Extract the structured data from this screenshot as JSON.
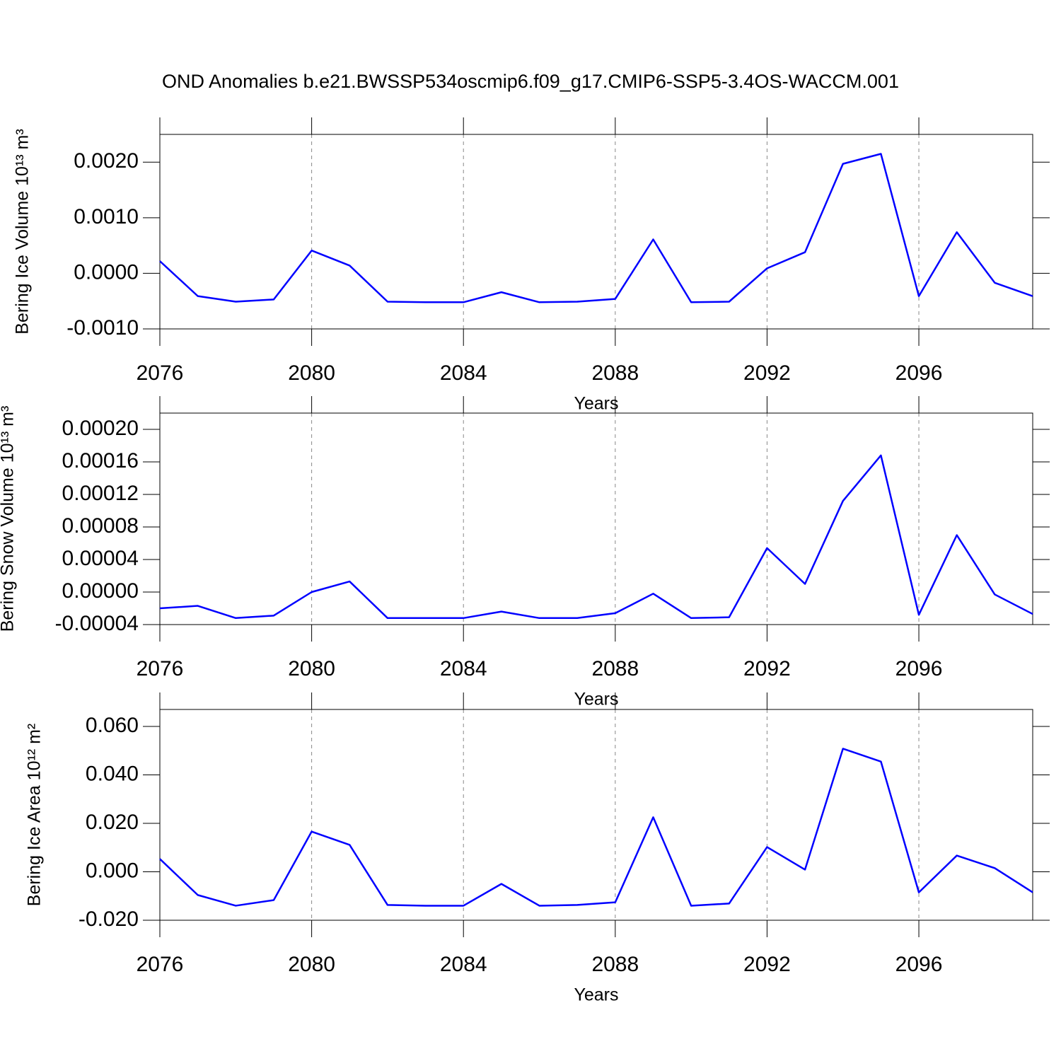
{
  "chart_data": [
    {
      "type": "line",
      "title": "OND Anomalies b.e21.BWSSP534oscmip6.f09_g17.CMIP6-SSP5-3.4OS-WACCM.001",
      "xlabel": "Years",
      "ylabel": "Bering Ice Volume 10¹³ m³",
      "x": [
        2076,
        2077,
        2078,
        2079,
        2080,
        2081,
        2082,
        2083,
        2084,
        2085,
        2086,
        2087,
        2088,
        2089,
        2090,
        2091,
        2092,
        2093,
        2094,
        2095,
        2096,
        2097,
        2098,
        2099
      ],
      "series": [
        {
          "color": "#0000ff",
          "values": [
            0.00022,
            -0.00041,
            -0.00051,
            -0.00047,
            0.00041,
            0.00014,
            -0.00051,
            -0.00052,
            -0.00052,
            -0.00034,
            -0.00052,
            -0.00051,
            -0.00046,
            0.00061,
            -0.00052,
            -0.00051,
            9e-05,
            0.00038,
            0.00197,
            0.00215,
            -0.00041,
            0.00074,
            -0.00017,
            -0.00041
          ]
        }
      ],
      "xlim": [
        2076,
        2099
      ],
      "xticks": [
        2076,
        2080,
        2084,
        2088,
        2092,
        2096
      ],
      "ylim": [
        -0.001,
        0.0025
      ],
      "yticks": [
        {
          "value": -0.001,
          "label": "-0.0010"
        },
        {
          "value": 0,
          "label": "0.0000"
        },
        {
          "value": 0.001,
          "label": "0.0010"
        },
        {
          "value": 0.002,
          "label": "0.0020"
        }
      ],
      "grid": "x"
    },
    {
      "type": "line",
      "xlabel": "Years",
      "ylabel": "Bering Snow Volume 10¹³ m³",
      "x": [
        2076,
        2077,
        2078,
        2079,
        2080,
        2081,
        2082,
        2083,
        2084,
        2085,
        2086,
        2087,
        2088,
        2089,
        2090,
        2091,
        2092,
        2093,
        2094,
        2095,
        2096,
        2097,
        2098,
        2099
      ],
      "series": [
        {
          "color": "#0000ff",
          "values": [
            -2e-05,
            -1.7e-05,
            -3.2e-05,
            -2.9e-05,
            0,
            1.3e-05,
            -3.2e-05,
            -3.2e-05,
            -3.2e-05,
            -2.4e-05,
            -3.2e-05,
            -3.2e-05,
            -2.6e-05,
            -2e-06,
            -3.2e-05,
            -3.1e-05,
            5.4e-05,
            1e-05,
            0.000112,
            0.000168,
            -2.8e-05,
            7e-05,
            -3e-06,
            -2.7e-05
          ]
        }
      ],
      "xlim": [
        2076,
        2099
      ],
      "xticks": [
        2076,
        2080,
        2084,
        2088,
        2092,
        2096
      ],
      "ylim": [
        -4e-05,
        0.00022
      ],
      "yticks": [
        {
          "value": -4e-05,
          "label": "-0.00004"
        },
        {
          "value": 0,
          "label": "0.00000"
        },
        {
          "value": 4e-05,
          "label": "0.00004"
        },
        {
          "value": 8e-05,
          "label": "0.00008"
        },
        {
          "value": 0.00012,
          "label": "0.00012"
        },
        {
          "value": 0.00016,
          "label": "0.00016"
        },
        {
          "value": 0.0002,
          "label": "0.00020"
        }
      ],
      "grid": "x"
    },
    {
      "type": "line",
      "xlabel": "Years",
      "ylabel": "Bering Ice Area 10¹² m²",
      "x": [
        2076,
        2077,
        2078,
        2079,
        2080,
        2081,
        2082,
        2083,
        2084,
        2085,
        2086,
        2087,
        2088,
        2089,
        2090,
        2091,
        2092,
        2093,
        2094,
        2095,
        2096,
        2097,
        2098,
        2099
      ],
      "series": [
        {
          "color": "#0000ff",
          "values": [
            0.0053,
            -0.0096,
            -0.014,
            -0.0117,
            0.0166,
            0.0111,
            -0.0137,
            -0.014,
            -0.014,
            -0.005,
            -0.014,
            -0.0137,
            -0.0126,
            0.0225,
            -0.014,
            -0.0131,
            0.0102,
            0.0009,
            0.0508,
            0.0455,
            -0.0085,
            0.0067,
            0.0015,
            -0.0085
          ]
        }
      ],
      "xlim": [
        2076,
        2099
      ],
      "xticks": [
        2076,
        2080,
        2084,
        2088,
        2092,
        2096
      ],
      "ylim": [
        -0.02,
        0.067
      ],
      "yticks": [
        {
          "value": -0.02,
          "label": "-0.020"
        },
        {
          "value": 0,
          "label": "0.000"
        },
        {
          "value": 0.02,
          "label": "0.020"
        },
        {
          "value": 0.04,
          "label": "0.040"
        },
        {
          "value": 0.06,
          "label": "0.060"
        }
      ],
      "grid": "x"
    }
  ]
}
